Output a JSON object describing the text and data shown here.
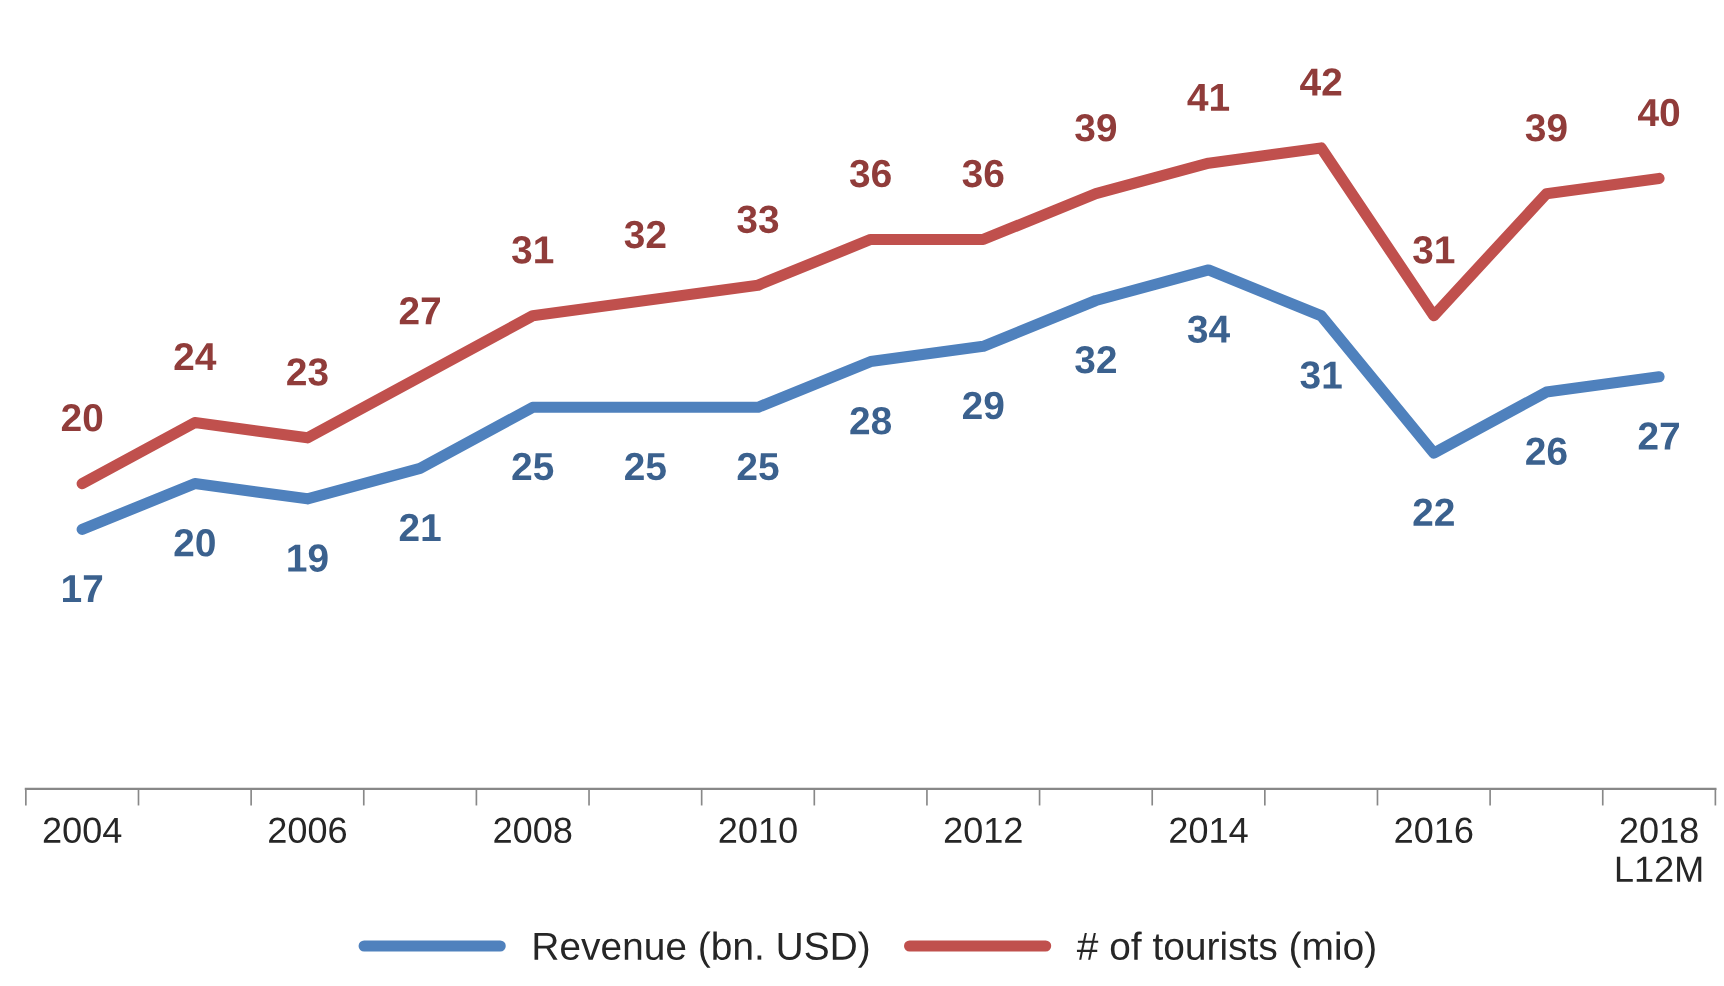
{
  "chart_data": {
    "type": "line",
    "categories": [
      "2004",
      null,
      "2006",
      null,
      "2008",
      null,
      "2010",
      null,
      "2012",
      null,
      "2014",
      null,
      "2016",
      null,
      "2018\nL12M"
    ],
    "series": [
      {
        "name": "Revenue (bn. USD)",
        "color": "#4f81bd",
        "values": [
          17,
          20,
          19,
          21,
          25,
          25,
          25,
          28,
          29,
          32,
          34,
          31,
          22,
          26,
          27
        ]
      },
      {
        "name": "# of tourists (mio)",
        "color": "#c0504d",
        "values": [
          20,
          24,
          23,
          27,
          31,
          32,
          33,
          36,
          36,
          39,
          41,
          42,
          31,
          39,
          40
        ]
      }
    ],
    "data_labels": true,
    "legend": "bottom",
    "grid": false,
    "marker": "none",
    "line_style": "solid",
    "tick_labels": "x"
  }
}
